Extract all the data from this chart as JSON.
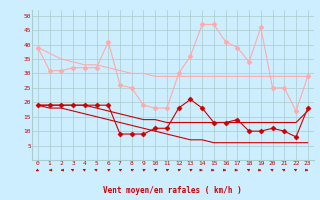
{
  "xlabel": "Vent moyen/en rafales ( km/h )",
  "background_color": "#cceeff",
  "grid_color": "#aacccc",
  "x_values": [
    0,
    1,
    2,
    3,
    4,
    5,
    6,
    7,
    8,
    9,
    10,
    11,
    12,
    13,
    14,
    15,
    16,
    17,
    18,
    19,
    20,
    21,
    22,
    23
  ],
  "series": [
    {
      "y": [
        39,
        37,
        35,
        34,
        33,
        33,
        32,
        31,
        30,
        30,
        29,
        29,
        29,
        29,
        29,
        29,
        29,
        29,
        29,
        29,
        29,
        29,
        29,
        29
      ],
      "color": "#ffaaaa",
      "marker": null,
      "linewidth": 0.8,
      "linestyle": "-",
      "zorder": 2
    },
    {
      "y": [
        19,
        19,
        19,
        19,
        19,
        18,
        17,
        16,
        15,
        14,
        14,
        13,
        13,
        13,
        13,
        13,
        13,
        13,
        13,
        13,
        13,
        13,
        13,
        17
      ],
      "color": "#cc0000",
      "marker": null,
      "linewidth": 0.8,
      "linestyle": "-",
      "zorder": 2
    },
    {
      "y": [
        19,
        18,
        18,
        17,
        16,
        15,
        14,
        13,
        12,
        11,
        10,
        9,
        8,
        7,
        7,
        6,
        6,
        6,
        6,
        6,
        6,
        6,
        6,
        6
      ],
      "color": "#cc0000",
      "marker": null,
      "linewidth": 0.8,
      "linestyle": "-",
      "zorder": 2
    },
    {
      "y": [
        39,
        31,
        31,
        32,
        32,
        32,
        41,
        26,
        25,
        19,
        18,
        18,
        30,
        36,
        47,
        47,
        41,
        39,
        34,
        46,
        25,
        25,
        17,
        29
      ],
      "color": "#ffaaaa",
      "marker": "D",
      "markersize": 2.5,
      "linewidth": 0.8,
      "linestyle": "-",
      "zorder": 3
    },
    {
      "y": [
        19,
        19,
        19,
        19,
        19,
        19,
        19,
        9,
        9,
        9,
        11,
        11,
        18,
        21,
        18,
        13,
        13,
        14,
        10,
        10,
        11,
        10,
        8,
        18
      ],
      "color": "#cc0000",
      "marker": "D",
      "markersize": 2.5,
      "linewidth": 0.8,
      "linestyle": "-",
      "zorder": 3
    }
  ],
  "ylim": [
    0,
    52
  ],
  "yticks": [
    5,
    10,
    15,
    20,
    25,
    30,
    35,
    40,
    45,
    50
  ],
  "xlim": [
    -0.5,
    23.5
  ],
  "xticks": [
    0,
    1,
    2,
    3,
    4,
    5,
    6,
    7,
    8,
    9,
    10,
    11,
    12,
    13,
    14,
    15,
    16,
    17,
    18,
    19,
    20,
    21,
    22,
    23
  ],
  "wind_arrows": {
    "directions": [
      225,
      270,
      270,
      315,
      315,
      315,
      45,
      45,
      45,
      45,
      45,
      45,
      45,
      45,
      90,
      90,
      90,
      90,
      315,
      90,
      315,
      315,
      315,
      90
    ],
    "color": "#cc0000"
  }
}
